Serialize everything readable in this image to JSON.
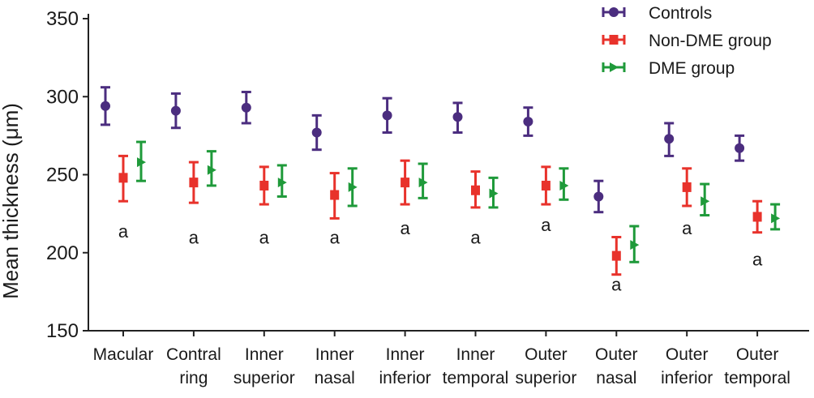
{
  "chart_data": {
    "type": "scatter",
    "ylabel": "Mean thickness (μm)",
    "ylim": [
      150,
      350
    ],
    "yticks": [
      150,
      200,
      250,
      300,
      350
    ],
    "grid": false,
    "legend_position": "top-right",
    "categories": [
      [
        "Macular",
        ""
      ],
      [
        "Contral",
        "ring"
      ],
      [
        "Inner",
        "superior"
      ],
      [
        "Inner",
        "nasal"
      ],
      [
        "Inner",
        "inferior"
      ],
      [
        "Inner",
        "temporal"
      ],
      [
        "Outer",
        "superior"
      ],
      [
        "Outer",
        "nasal"
      ],
      [
        "Outer",
        "inferior"
      ],
      [
        "Outer",
        "temporal"
      ]
    ],
    "series": [
      {
        "name": "Controls",
        "color": "#4b2d7f",
        "marker": "circle",
        "mean": [
          294,
          291,
          293,
          277,
          288,
          287,
          284,
          236,
          273,
          267
        ],
        "lower": [
          282,
          280,
          283,
          266,
          277,
          277,
          275,
          226,
          262,
          259
        ],
        "upper": [
          306,
          302,
          303,
          288,
          299,
          296,
          293,
          246,
          283,
          275
        ]
      },
      {
        "name": "Non-DME group",
        "color": "#e8322b",
        "marker": "square",
        "mean": [
          248,
          245,
          243,
          237,
          245,
          240,
          243,
          198,
          242,
          223
        ],
        "lower": [
          233,
          232,
          231,
          222,
          231,
          229,
          231,
          186,
          230,
          213
        ],
        "upper": [
          262,
          258,
          255,
          251,
          259,
          252,
          255,
          210,
          254,
          233
        ]
      },
      {
        "name": "DME group",
        "color": "#1f9a3a",
        "marker": "triangle",
        "mean": [
          258,
          253,
          245,
          242,
          245,
          238,
          243,
          205,
          233,
          222
        ],
        "lower": [
          246,
          243,
          236,
          230,
          235,
          229,
          234,
          194,
          224,
          215
        ],
        "upper": [
          271,
          265,
          256,
          254,
          257,
          248,
          254,
          217,
          244,
          231
        ]
      }
    ],
    "annotations": [
      {
        "text": "a",
        "category": 0,
        "y": 214
      },
      {
        "text": "a",
        "category": 1,
        "y": 210
      },
      {
        "text": "a",
        "category": 2,
        "y": 210
      },
      {
        "text": "a",
        "category": 3,
        "y": 210
      },
      {
        "text": "a",
        "category": 4,
        "y": 216
      },
      {
        "text": "a",
        "category": 5,
        "y": 210
      },
      {
        "text": "a",
        "category": 6,
        "y": 218
      },
      {
        "text": "a",
        "category": 7,
        "y": 180
      },
      {
        "text": "a",
        "category": 8,
        "y": 216
      },
      {
        "text": "a",
        "category": 9,
        "y": 196
      }
    ]
  }
}
